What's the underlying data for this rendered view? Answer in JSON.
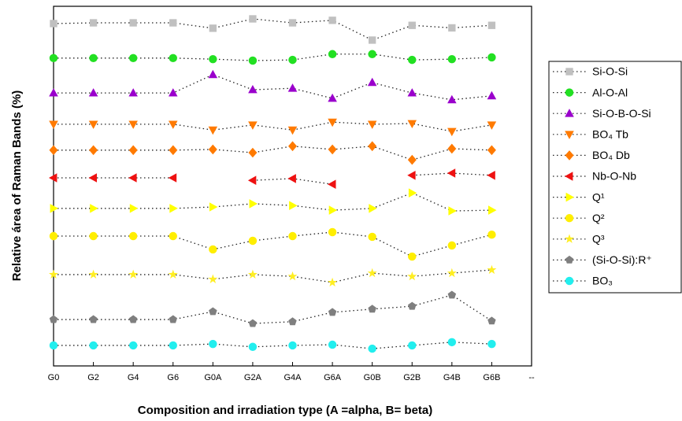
{
  "chart_data": {
    "type": "line",
    "xlabel": "Composition and irradiation type (A =alpha,  B= beta)",
    "ylabel": "Relative área of Raman Bands (%)",
    "categories": [
      "G0",
      "G2",
      "G4",
      "G6",
      "G0A",
      "G2A",
      "G4A",
      "G6A",
      "G0B",
      "G2B",
      "G4B",
      "G6B",
      "--"
    ],
    "ylim": [
      0,
      100
    ],
    "legend": "right",
    "series": [
      {
        "name": "Si-O-Si",
        "color": "#c0c0c0",
        "marker": "square",
        "values": [
          95.2,
          95.4,
          95.4,
          95.4,
          93.9,
          96.5,
          95.4,
          96.1,
          90.6,
          94.7,
          94.0,
          94.7,
          null
        ]
      },
      {
        "name": "Al-O-Al",
        "color": "#22e022",
        "marker": "circle",
        "values": [
          85.6,
          85.6,
          85.6,
          85.6,
          85.3,
          84.9,
          85.1,
          86.7,
          86.7,
          85.1,
          85.3,
          85.8,
          null
        ]
      },
      {
        "name": "Si-O-B-O-Si",
        "color": "#9a00cc",
        "marker": "triangle-up",
        "values": [
          75.9,
          75.9,
          75.9,
          75.9,
          81.0,
          76.8,
          77.2,
          74.4,
          78.8,
          75.9,
          74.0,
          75.1,
          null
        ]
      },
      {
        "name": "BO₄ Tb",
        "color": "#ff7a00",
        "marker": "triangle-down",
        "values": [
          67.2,
          67.2,
          67.2,
          67.2,
          65.6,
          67.0,
          65.6,
          67.8,
          67.2,
          67.4,
          65.2,
          67.0,
          null
        ]
      },
      {
        "name": "BO₄ Db",
        "color": "#ff7a00",
        "marker": "diamond",
        "values": [
          60.0,
          60.0,
          60.0,
          60.0,
          60.2,
          59.3,
          61.1,
          60.2,
          61.1,
          57.3,
          60.4,
          60.0,
          null
        ]
      },
      {
        "name": "Nb-O-Nb",
        "color": "#ee1111",
        "marker": "triangle-left",
        "values": [
          52.3,
          52.3,
          52.3,
          52.3,
          null,
          51.6,
          52.1,
          50.5,
          null,
          53.0,
          53.6,
          53.0,
          null
        ]
      },
      {
        "name": "Q¹",
        "color": "#ffff00",
        "marker": "triangle-right",
        "values": [
          43.8,
          43.8,
          43.8,
          43.8,
          44.2,
          45.1,
          44.6,
          43.3,
          43.8,
          48.1,
          43.1,
          43.3,
          null
        ]
      },
      {
        "name": "Q²",
        "color": "#ffee00",
        "marker": "circle",
        "values": [
          36.1,
          36.1,
          36.1,
          36.1,
          32.4,
          34.8,
          36.1,
          37.2,
          35.9,
          30.4,
          33.5,
          36.5,
          null
        ]
      },
      {
        "name": "Q³",
        "color": "#ffee22",
        "marker": "star",
        "values": [
          25.4,
          25.4,
          25.4,
          25.4,
          24.1,
          25.4,
          24.9,
          23.2,
          25.8,
          24.9,
          25.8,
          26.7,
          null
        ]
      },
      {
        "name": "(Si-O-Si):R⁺",
        "color": "#7f7f7f",
        "marker": "pentagon",
        "values": [
          12.9,
          12.9,
          12.9,
          12.9,
          15.1,
          11.8,
          12.3,
          14.9,
          15.8,
          16.6,
          19.7,
          12.5,
          null
        ]
      },
      {
        "name": "BO₃",
        "color": "#22eeee",
        "marker": "circle",
        "values": [
          5.7,
          5.7,
          5.7,
          5.7,
          6.1,
          5.3,
          5.7,
          5.9,
          4.8,
          5.7,
          6.6,
          6.1,
          null
        ]
      }
    ]
  }
}
